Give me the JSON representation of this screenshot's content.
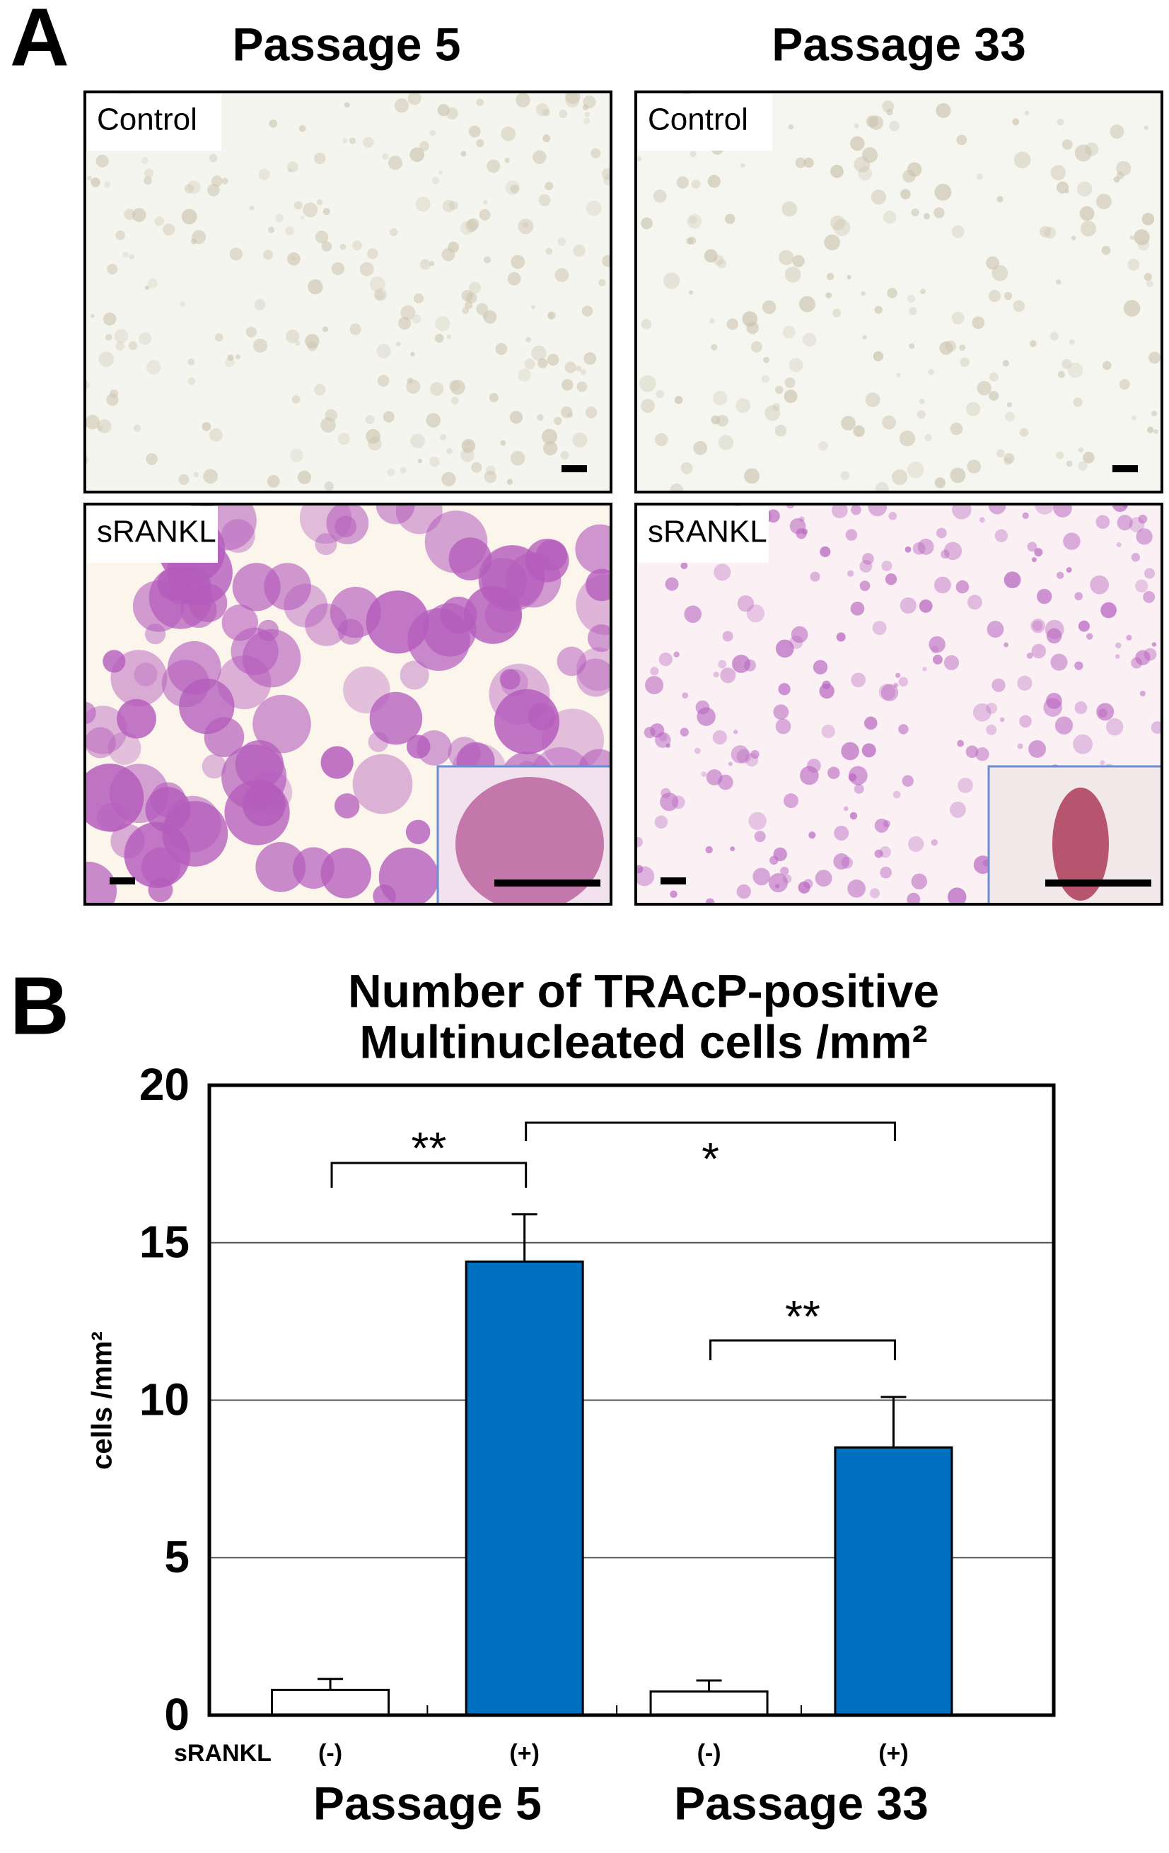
{
  "panel_a": {
    "label": "A",
    "columns": [
      "Passage 5",
      "Passage 33"
    ],
    "rows": [
      "Control",
      "sRANKL"
    ]
  },
  "chart_data": {
    "type": "bar",
    "panel_label": "B",
    "title": [
      "Number of TRAcP-positive",
      "Multinucleated cells /mm²"
    ],
    "y_label": "cells /mm²",
    "row_label": "sRANKL",
    "categories": [
      "(-)",
      "(+)",
      "(-)",
      "(+)"
    ],
    "groups": [
      "Passage 5",
      "Passage 33"
    ],
    "values": [
      0.8,
      14.4,
      0.75,
      8.5
    ],
    "errors": [
      0.35,
      1.5,
      0.35,
      1.6
    ],
    "colors": [
      "#ffffff",
      "#0070c0",
      "#ffffff",
      "#0070c0"
    ],
    "ylim": [
      0,
      20
    ],
    "yticks": [
      0,
      5,
      10,
      15,
      20
    ],
    "grid": true,
    "annotations": [
      "**",
      "*",
      "**"
    ]
  }
}
